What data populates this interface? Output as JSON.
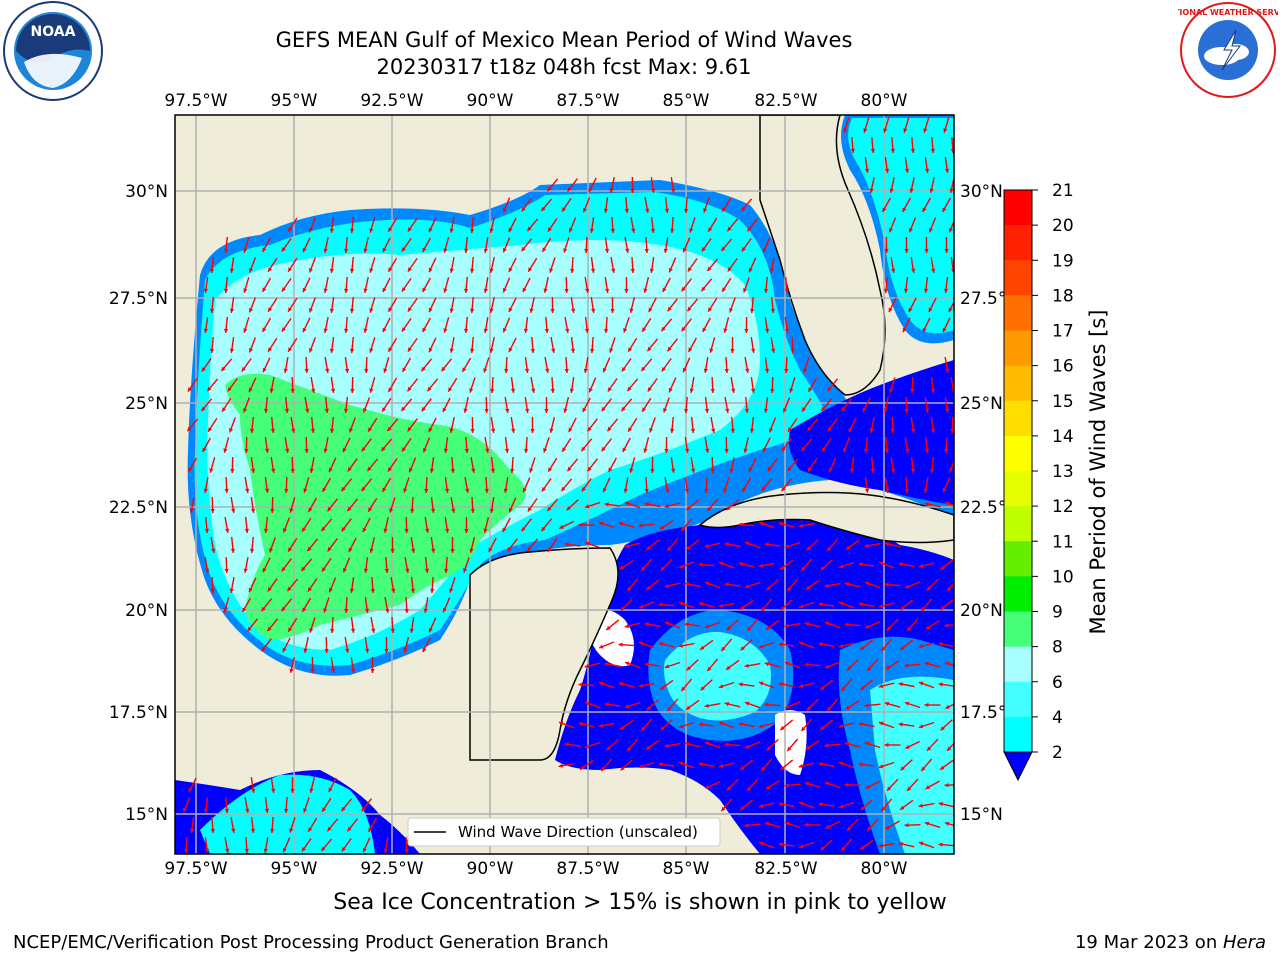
{
  "title_line1": "GEFS MEAN Gulf of Mexico Mean Period of Wind Waves",
  "title_line2": "20230317 t18z 048h fcst   Max: 9.61",
  "logos": {
    "left": "noaa-logo",
    "right": "nws-logo",
    "left_text": "NOAA",
    "right_text": "NATIONAL WEATHER SERVICE"
  },
  "lon_labels": [
    "97.5°W",
    "95°W",
    "92.5°W",
    "90°W",
    "87.5°W",
    "85°W",
    "82.5°W",
    "80°W"
  ],
  "lat_labels": [
    "30°N",
    "27.5°N",
    "25°N",
    "22.5°N",
    "20°N",
    "17.5°N",
    "15°N"
  ],
  "colorbar": {
    "label": "Mean Period of Wind Waves [s]",
    "ticks": [
      "21",
      "20",
      "19",
      "18",
      "17",
      "16",
      "15",
      "14",
      "13",
      "12",
      "11",
      "10",
      "9",
      "8",
      "6",
      "4",
      "2"
    ],
    "colors": [
      "#ff0000",
      "#ff2200",
      "#ff4400",
      "#ff7000",
      "#ff9900",
      "#ffbb00",
      "#ffdd00",
      "#ffff00",
      "#e6ff00",
      "#c0ff00",
      "#66ee00",
      "#00ee00",
      "#44ff77",
      "#a8ffff",
      "#44ffff",
      "#00ffff",
      "#0088ff",
      "#0000ff"
    ]
  },
  "legend": {
    "label": "Wind Wave Direction (unscaled)"
  },
  "note": "Sea Ice Concentration > 15% is shown in pink to yellow",
  "footer_left": "NCEP/EMC/Verification Post Processing Product Generation Branch",
  "footer_right_date": "19 Mar 2023 on ",
  "footer_right_host": "Hera",
  "colors": {
    "land": "#efedda",
    "arrow": "#ff0000",
    "grid": "#b0b0b0"
  }
}
